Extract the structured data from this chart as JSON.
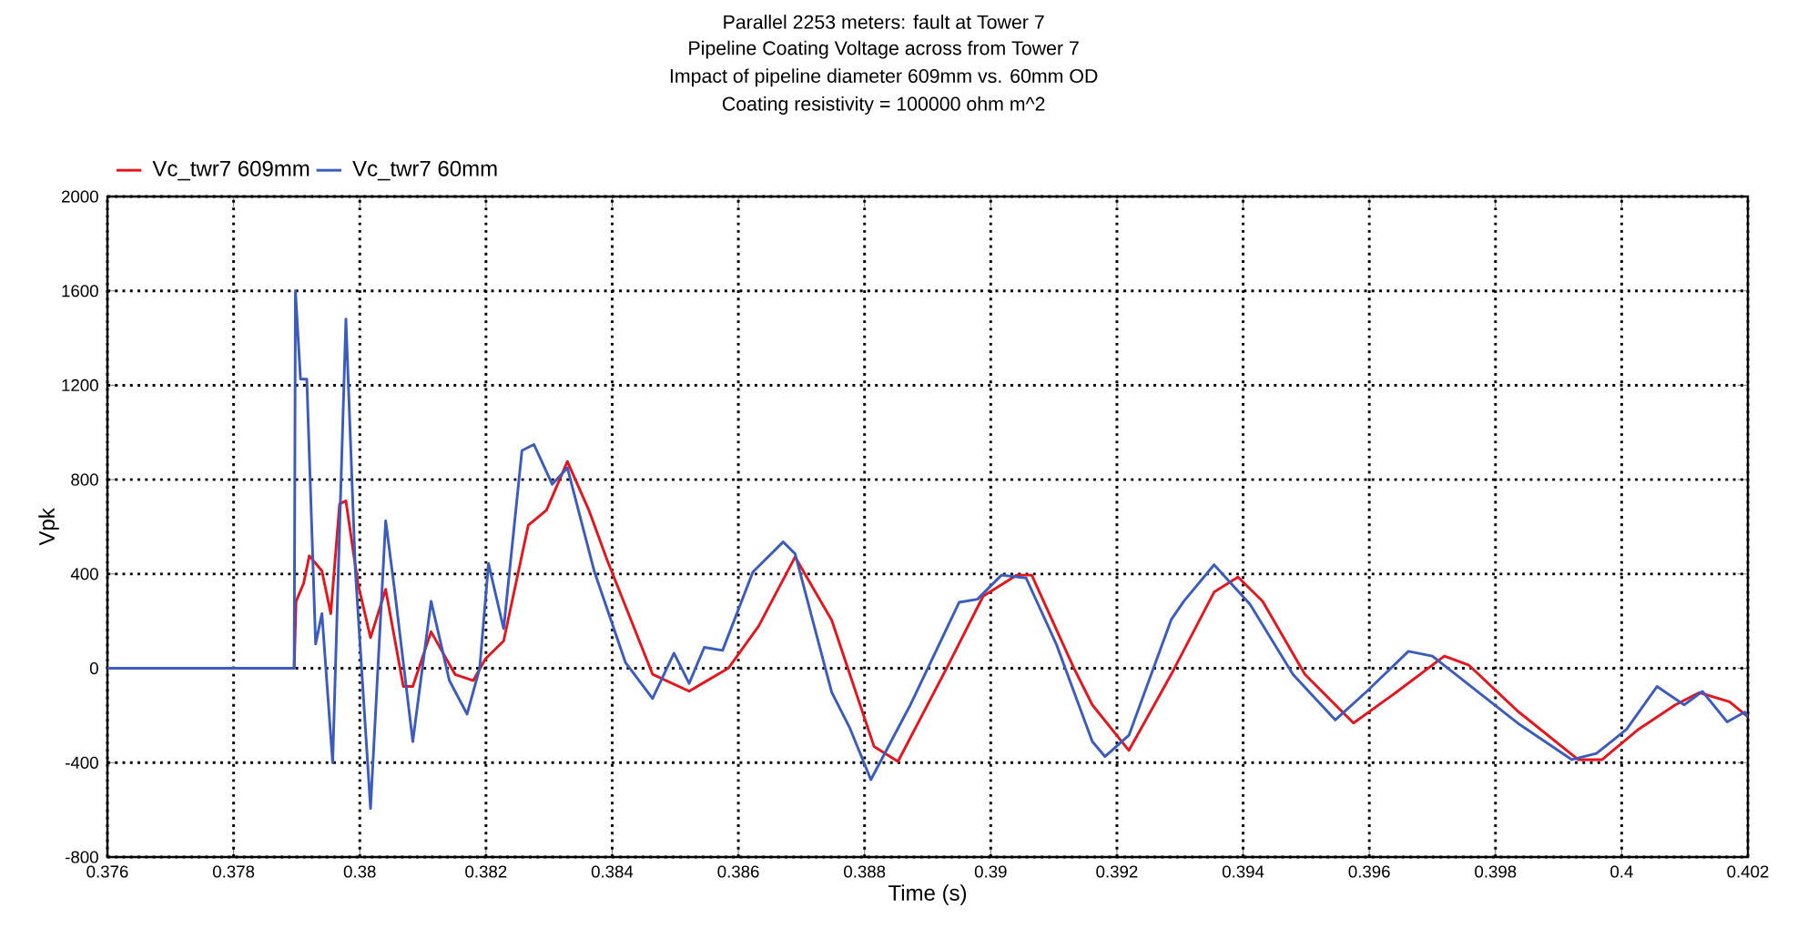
{
  "chart_data": {
    "type": "line",
    "title": "Parallel 2253 meters: fault at Tower 7",
    "subtitle": "Pipeline Coating Voltage across from Tower 7",
    "annotations": [
      "Impact of pipeline diameter 609mm vs. 60mm OD",
      "Coating resistivity = 100000 ohm m^2"
    ],
    "xlabel": "Time (s)",
    "ylabel": "Vpk",
    "xlim": [
      0.376,
      0.402
    ],
    "xticks": [
      0.376,
      0.378,
      0.38,
      0.382,
      0.384,
      0.386,
      0.388,
      0.39,
      0.392,
      0.394,
      0.396,
      0.398,
      0.4,
      0.402
    ],
    "ylim": [
      -800,
      2000
    ],
    "yticks": [
      -800,
      -400,
      0,
      400,
      800,
      1200,
      1600,
      2000
    ],
    "grid": true,
    "legend": "top left",
    "marker": "none",
    "line_style": "solid",
    "series": [
      {
        "name": "Vc_twr7 609mm",
        "color": "#e8141c",
        "x": [
          0.376,
          0.37896,
          0.37899,
          0.37911,
          0.3792,
          0.3794,
          0.37954,
          0.37968,
          0.37978,
          0.37997,
          0.38017,
          0.38041,
          0.38069,
          0.38084,
          0.38113,
          0.38151,
          0.3818,
          0.38199,
          0.38228,
          0.38267,
          0.38296,
          0.38329,
          0.38363,
          0.38392,
          0.38464,
          0.38522,
          0.38584,
          0.38632,
          0.3869,
          0.38748,
          0.38815,
          0.38853,
          0.3893,
          0.38988,
          0.39041,
          0.39065,
          0.39132,
          0.39161,
          0.39219,
          0.39286,
          0.39354,
          0.39392,
          0.39431,
          0.39498,
          0.39575,
          0.39642,
          0.39719,
          0.39758,
          0.39835,
          0.39931,
          0.39969,
          0.40027,
          0.40085,
          0.40123,
          0.40171,
          0.402
        ],
        "values": [
          0,
          0,
          284,
          360,
          477,
          413,
          232,
          697,
          710,
          360,
          130,
          335,
          -77,
          -77,
          155,
          -26,
          -52,
          40,
          116,
          606,
          671,
          877,
          671,
          459,
          -25,
          -97,
          0,
          178,
          472,
          204,
          -331,
          -395,
          0,
          306,
          395,
          395,
          0,
          -155,
          -348,
          -26,
          323,
          387,
          284,
          -26,
          -232,
          -103,
          52,
          13,
          -181,
          -387,
          -387,
          -258,
          -155,
          -103,
          -142,
          -206
        ]
      },
      {
        "name": "Vc_twr7 60mm",
        "color": "#3a5bbf",
        "x": [
          0.376,
          0.37896,
          0.37898,
          0.37906,
          0.37916,
          0.3793,
          0.3794,
          0.37957,
          0.37968,
          0.37978,
          0.37993,
          0.38017,
          0.38041,
          0.38055,
          0.38084,
          0.38113,
          0.38142,
          0.3817,
          0.3819,
          0.38204,
          0.38228,
          0.38257,
          0.38276,
          0.38305,
          0.38329,
          0.38372,
          0.38421,
          0.38464,
          0.38498,
          0.38522,
          0.38546,
          0.38575,
          0.38623,
          0.38671,
          0.3869,
          0.38748,
          0.38777,
          0.3881,
          0.38873,
          0.3895,
          0.38979,
          0.39017,
          0.39056,
          0.39104,
          0.39161,
          0.39181,
          0.39219,
          0.39286,
          0.39306,
          0.39354,
          0.39411,
          0.39479,
          0.39546,
          0.39594,
          0.39662,
          0.397,
          0.39835,
          0.39921,
          0.3996,
          0.40008,
          0.40056,
          0.40099,
          0.40128,
          0.40167,
          0.40195,
          0.402
        ],
        "values": [
          0,
          0,
          1600,
          1226,
          1226,
          103,
          232,
          -400,
          594,
          1480,
          413,
          -594,
          625,
          335,
          -310,
          284,
          -52,
          -194,
          0,
          444,
          168,
          923,
          949,
          780,
          850,
          408,
          25,
          -128,
          64,
          -64,
          89,
          76,
          408,
          536,
          485,
          -102,
          -255,
          -472,
          -153,
          280,
          293,
          395,
          383,
          102,
          -310,
          -374,
          -284,
          206,
          284,
          439,
          271,
          -26,
          -219,
          -103,
          72,
          52,
          -232,
          -387,
          -361,
          -258,
          -77,
          -155,
          -98,
          -227,
          -186,
          -206
        ]
      }
    ]
  }
}
